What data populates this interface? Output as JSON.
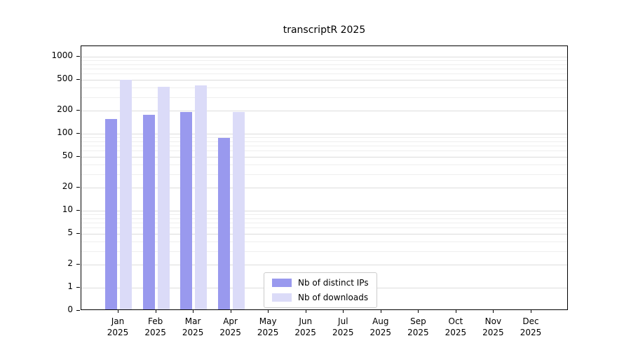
{
  "title": "transcriptR 2025",
  "chart_data": {
    "type": "bar",
    "title": "transcriptR 2025",
    "xlabel": "",
    "ylabel": "",
    "yscale": "log-like",
    "yticks": [
      0,
      1,
      2,
      5,
      10,
      20,
      50,
      100,
      200,
      500,
      1000
    ],
    "ylim": [
      0,
      1400
    ],
    "grid": "horizontal",
    "legend_position": "bottom-center",
    "year": "2025",
    "categories": [
      "Jan",
      "Feb",
      "Mar",
      "Apr",
      "May",
      "Jun",
      "Jul",
      "Aug",
      "Sep",
      "Oct",
      "Nov",
      "Dec"
    ],
    "series": [
      {
        "name": "Nb of distinct IPs",
        "color": "#9999ee",
        "values": [
          150,
          170,
          185,
          85,
          0,
          0,
          0,
          0,
          0,
          0,
          0,
          0
        ]
      },
      {
        "name": "Nb of downloads",
        "color": "#dbdbf8",
        "values": [
          480,
          390,
          405,
          185,
          0,
          0,
          0,
          0,
          0,
          0,
          0,
          0
        ]
      }
    ]
  }
}
